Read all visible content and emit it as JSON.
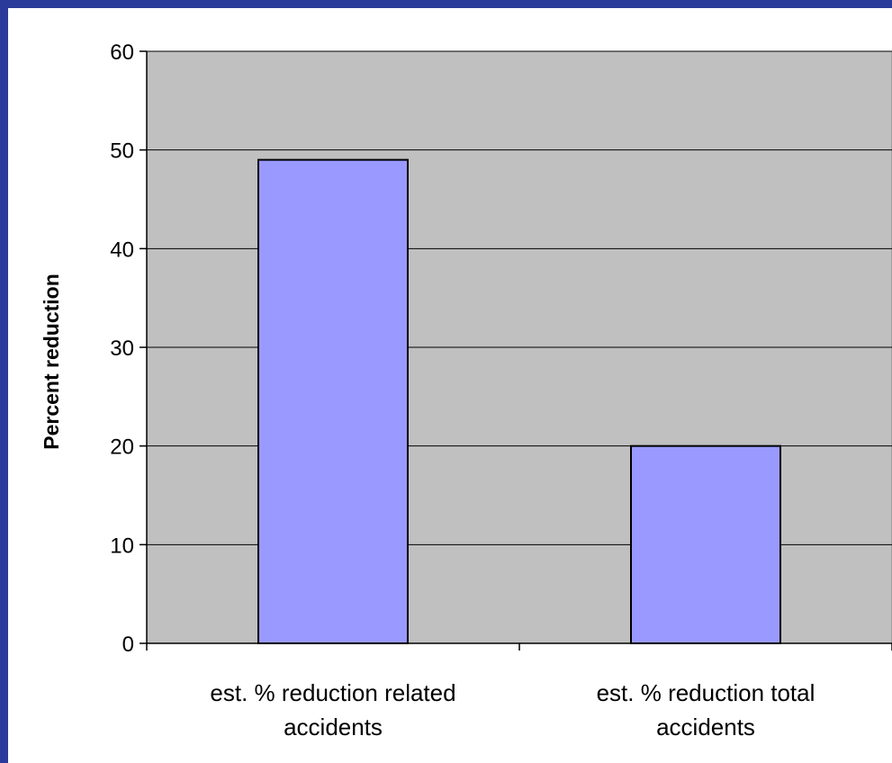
{
  "chart_data": {
    "type": "bar",
    "title": "",
    "xlabel": "",
    "ylabel": "Percent reduction",
    "categories": [
      [
        "est. % reduction related",
        "accidents"
      ],
      [
        "est. % reduction total",
        "accidents"
      ]
    ],
    "values": [
      49,
      20
    ],
    "ylim": [
      0,
      60
    ],
    "yticks": [
      0,
      10,
      20,
      30,
      40,
      50,
      60
    ],
    "grid": true,
    "legend": "none",
    "colors": {
      "frame": "#2a3a9a",
      "plot_background": "#c0c0c0",
      "bar_fill": "#9999ff",
      "bar_stroke": "#000000",
      "gridline": "#000000"
    }
  }
}
